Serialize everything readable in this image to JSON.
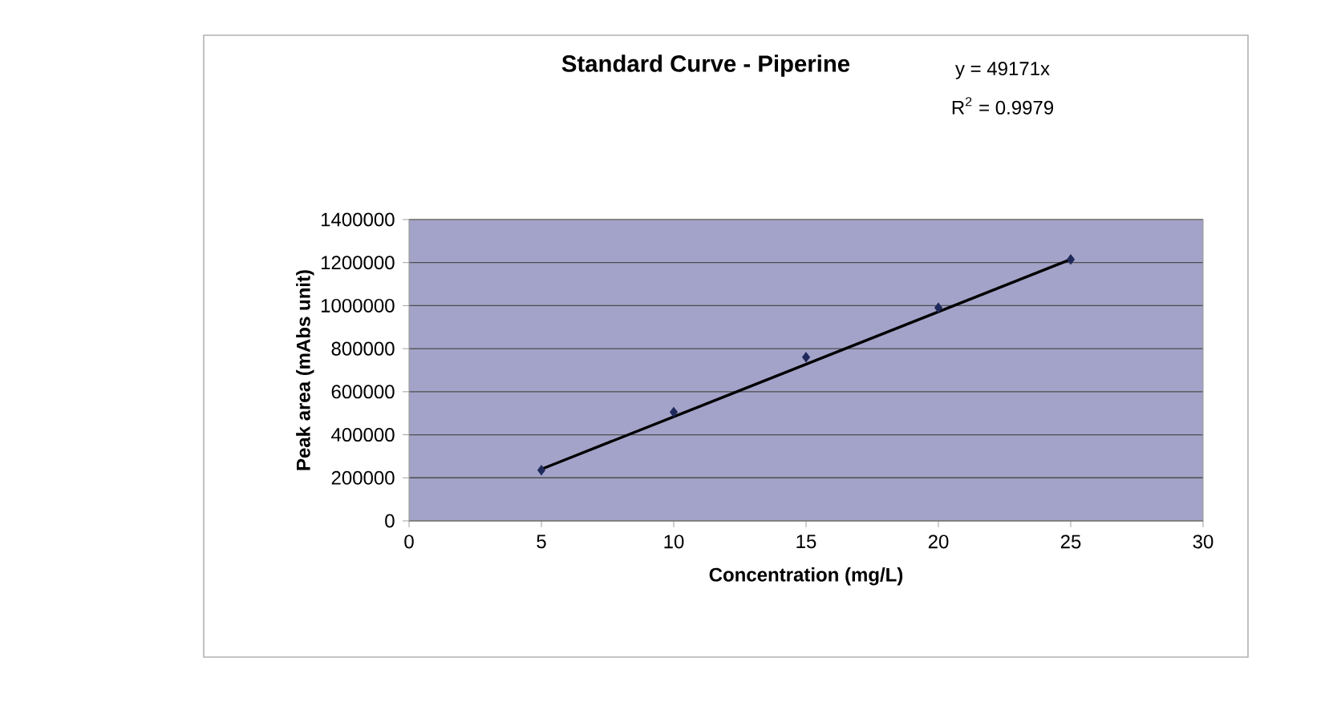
{
  "chart_data": {
    "type": "scatter",
    "title": "Standard Curve - Piperine",
    "xlabel": "Concentration (mg/L)",
    "ylabel": "Peak area (mAbs unit)",
    "annotations": [
      "y = 49171x",
      "R$^{2}$ = 0.9979"
    ],
    "x": [
      5,
      10,
      15,
      20,
      25
    ],
    "series": [
      {
        "color": "#1f2a5a",
        "values": [
          235000,
          505000,
          760000,
          990000,
          1215000
        ]
      },
      {
        "type": "line",
        "marker": "none",
        "color": "#000000",
        "x": [
          5,
          25
        ],
        "values": [
          240000,
          1215000
        ]
      }
    ],
    "xlim": [
      0,
      30
    ],
    "ylim": [
      0,
      1400000
    ],
    "xticks": [
      0,
      5,
      10,
      15,
      20,
      25,
      30
    ],
    "yticks": [
      0,
      200000,
      400000,
      600000,
      800000,
      1000000,
      1200000,
      1400000
    ],
    "grid": "y",
    "marker": "diamond"
  }
}
